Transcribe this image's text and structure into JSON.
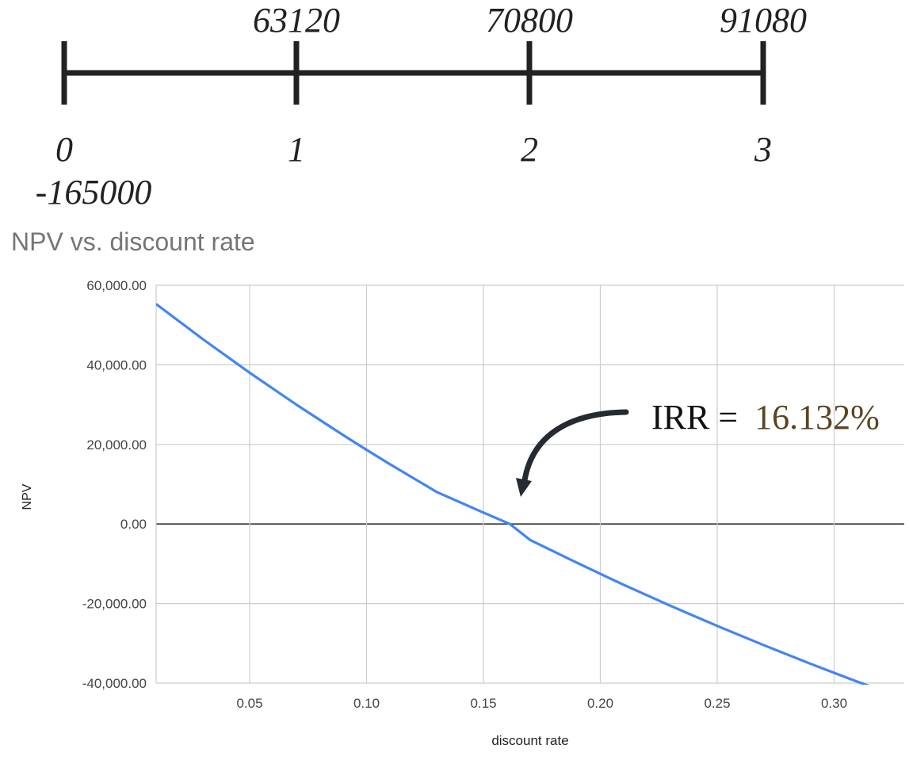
{
  "timeline": {
    "periods": [
      "0",
      "1",
      "2",
      "3"
    ],
    "cash_flows": [
      "63120",
      "70800",
      "91080"
    ],
    "initial_outlay": "-165000"
  },
  "annotation": {
    "label": "IRR =",
    "value": "16.132%",
    "value_color": "#5c4420"
  },
  "colors": {
    "series": "#4285f4",
    "grid": "#cccccc",
    "axis_zero": "#333333",
    "timeline": "#222222",
    "title": "#757575"
  },
  "chart_data": {
    "type": "line",
    "title": "NPV vs. discount rate",
    "xlabel": "discount rate",
    "ylabel": "NPV",
    "xlim": [
      0.01,
      0.33
    ],
    "ylim": [
      -40000,
      60000
    ],
    "x_ticks": [
      "0.05",
      "0.10",
      "0.15",
      "0.20",
      "0.25",
      "0.30"
    ],
    "y_ticks": [
      "60,000.00",
      "40,000.00",
      "20,000.00",
      "0.00",
      "-20,000.00",
      "-40,000.00"
    ],
    "grid": true,
    "series": [
      {
        "x": [
          0.01,
          0.03,
          0.05,
          0.07,
          0.09,
          0.1,
          0.11,
          0.13,
          0.15,
          0.16132,
          0.17,
          0.19,
          0.2,
          0.21,
          0.23,
          0.25,
          0.27,
          0.29,
          0.3,
          0.31,
          0.33
        ],
        "values": [
          55289,
          46453,
          38034,
          30006,
          22345,
          18645,
          15030,
          8039,
          2862,
          0,
          -4025,
          -9743,
          -12537,
          -15269,
          -20557,
          -25625,
          -30485,
          -35151,
          -37415,
          -39634,
          -43916
        ]
      }
    ]
  }
}
